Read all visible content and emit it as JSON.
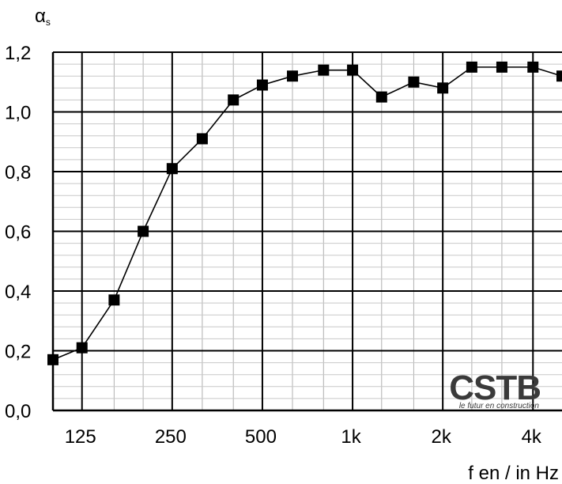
{
  "chart_data": {
    "type": "line",
    "xscale": "log",
    "xlabel": "f en / in Hz",
    "ylabel": "αs",
    "ylabel_symbol": "α",
    "ylabel_sub": "s",
    "xlim": [
      100,
      5000
    ],
    "ylim": [
      0,
      1.2
    ],
    "yticks": [
      0,
      0.2,
      0.4,
      0.6,
      0.8,
      1.0,
      1.2
    ],
    "ytick_labels": [
      "0,0",
      "0,2",
      "0,4",
      "0,6",
      "0,8",
      "1,0",
      "1,2"
    ],
    "xticks": [
      125,
      250,
      500,
      1000,
      2000,
      4000
    ],
    "xtick_labels": [
      "125",
      "250",
      "500",
      "1k",
      "2k",
      "4k"
    ],
    "grid": true,
    "marker": "square",
    "line_color": "#000000",
    "series": [
      {
        "x": [
          100,
          125,
          160,
          200,
          250,
          315,
          400,
          500,
          630,
          800,
          1000,
          1250,
          1600,
          2000,
          2500,
          3150,
          4000,
          5000
        ],
        "values": [
          0.17,
          0.21,
          0.37,
          0.6,
          0.81,
          0.91,
          1.04,
          1.09,
          1.12,
          1.14,
          1.14,
          1.05,
          1.1,
          1.08,
          1.15,
          1.15,
          1.15,
          1.12
        ]
      }
    ]
  },
  "logo": {
    "text": "CSTB",
    "tagline": "le futur en construction",
    "color": "#3a3a3a"
  }
}
